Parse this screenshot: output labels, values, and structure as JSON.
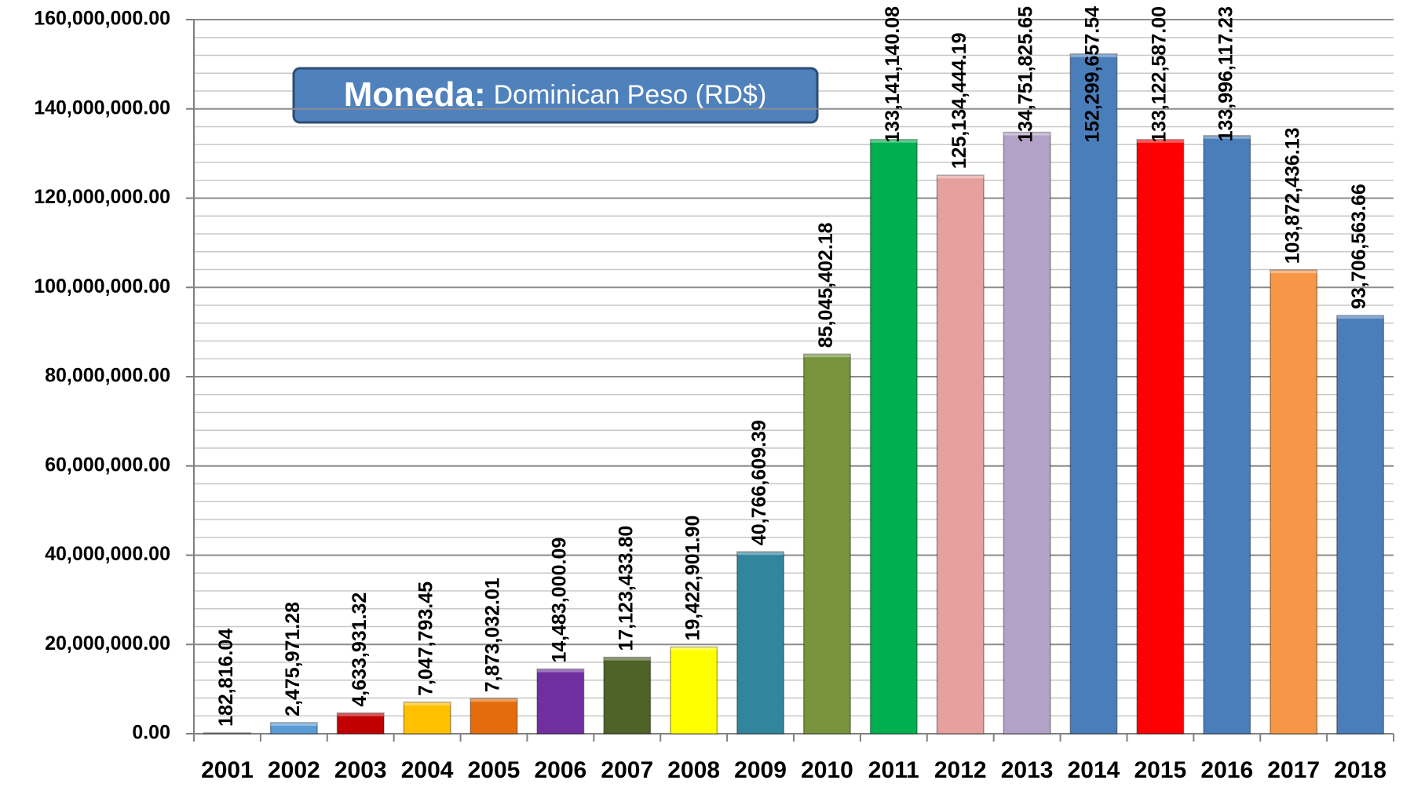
{
  "chart_data": {
    "type": "bar",
    "annotations": {
      "title_key": "Moneda:",
      "title_value": "Dominican Peso (RD$)"
    },
    "categories": [
      "2001",
      "2002",
      "2003",
      "2004",
      "2005",
      "2006",
      "2007",
      "2008",
      "2009",
      "2010",
      "2011",
      "2012",
      "2013",
      "2014",
      "2015",
      "2016",
      "2017",
      "2018"
    ],
    "values": [
      182816.04,
      2475971.28,
      4633931.32,
      7047793.45,
      7873032.01,
      14483000.09,
      17123433.8,
      19422901.9,
      40766609.39,
      85045402.18,
      133141140.08,
      125134444.19,
      134751825.65,
      152299657.54,
      133122587.0,
      133996117.23,
      103872436.13,
      93706563.66
    ],
    "value_labels": [
      "182,816.04",
      "2,475,971.28",
      "4,633,931.32",
      "7,047,793.45",
      "7,873,032.01",
      "14,483,000.09",
      "17,123,433.80",
      "19,422,901.90",
      "40,766,609.39",
      "85,045,402.18",
      "133,141,140.08",
      "125,134,444.19",
      "134,751,825.65",
      "152,299,657.54",
      "133,122,587.00",
      "133,996,117.23",
      "103,872,436.13",
      "93,706,563.66"
    ],
    "colors": [
      "#1a1a1a",
      "#5b9bd5",
      "#c00000",
      "#ffc000",
      "#e46c0a",
      "#7030a0",
      "#4f6228",
      "#ffff00",
      "#31859c",
      "#77933c",
      "#00b050",
      "#e6a09e",
      "#b3a2c7",
      "#4a7ebb",
      "#ff0000",
      "#4a7ebb",
      "#f79646",
      "#4a7ebb"
    ],
    "ylim": [
      0,
      160000000
    ],
    "yticks": [
      {
        "value": 0,
        "label": "0.00"
      },
      {
        "value": 20000000,
        "label": "20,000,000.00"
      },
      {
        "value": 40000000,
        "label": "40,000,000.00"
      },
      {
        "value": 60000000,
        "label": "60,000,000.00"
      },
      {
        "value": 80000000,
        "label": "80,000,000.00"
      },
      {
        "value": 100000000,
        "label": "100,000,000.00"
      },
      {
        "value": 120000000,
        "label": "120,000,000.00"
      },
      {
        "value": 140000000,
        "label": "140,000,000.00"
      },
      {
        "value": 160000000,
        "label": "160,000,000.00"
      }
    ],
    "minor_yticks": [
      4000000,
      8000000,
      12000000,
      16000000,
      24000000,
      28000000,
      32000000,
      36000000,
      44000000,
      48000000,
      52000000,
      56000000,
      64000000,
      68000000,
      72000000,
      76000000,
      84000000,
      88000000,
      92000000,
      96000000,
      104000000,
      108000000,
      112000000,
      116000000,
      124000000,
      128000000,
      132000000,
      136000000,
      144000000,
      148000000,
      152000000,
      156000000
    ],
    "grid": true
  }
}
